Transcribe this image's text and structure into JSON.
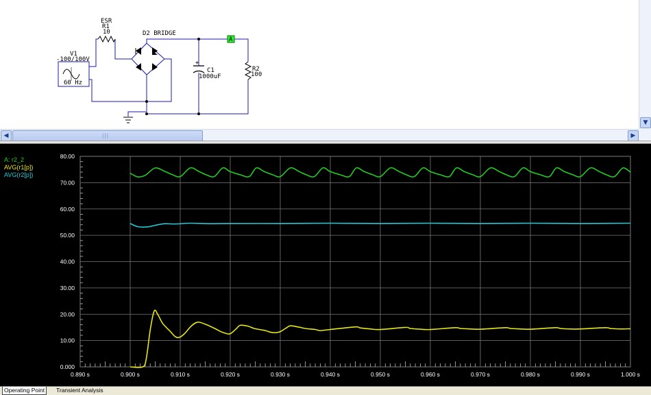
{
  "schematic": {
    "source": {
      "name": "V1",
      "value": "-100/100V",
      "freq": "60 Hz"
    },
    "esr": {
      "title": "ESR",
      "name": "R1",
      "value": "10"
    },
    "bridge": {
      "name": "D2 BRIDGE"
    },
    "capacitor": {
      "name": "C1",
      "value": "1000uF"
    },
    "load": {
      "name": "R2",
      "value": "100"
    },
    "probe": {
      "label": "A"
    }
  },
  "legend": [
    {
      "label": "A: r2_2",
      "color": "#22cc22"
    },
    {
      "label": "AVG(r1[p])",
      "color": "#e8e812"
    },
    {
      "label": "AVG(r2[p])",
      "color": "#22c8d8"
    }
  ],
  "tabs": [
    "Operating Point",
    "Transient Analysis"
  ],
  "chart_data": {
    "type": "line",
    "xlabel": "",
    "ylabel": "",
    "xlim": [
      0.89,
      1.0
    ],
    "ylim": [
      0,
      80
    ],
    "x_ticks": [
      "0.890 s",
      "0.900 s",
      "0.910 s",
      "0.920 s",
      "0.930 s",
      "0.940 s",
      "0.950 s",
      "0.960 s",
      "0.970 s",
      "0.980 s",
      "0.990 s",
      "1.000 s"
    ],
    "y_ticks": [
      "0.000",
      "10.00",
      "20.00",
      "30.00",
      "40.00",
      "50.00",
      "60.00",
      "70.00",
      "80.00"
    ],
    "grid": true,
    "legend_position": "top-left",
    "series": [
      {
        "name": "A: r2_2",
        "color": "#22cc22",
        "x": [
          0.9,
          0.9015,
          0.903,
          0.905,
          0.907,
          0.9085,
          0.91,
          0.912,
          0.9138,
          0.9152,
          0.9168,
          0.9185,
          0.92,
          0.922,
          0.9238,
          0.9252,
          0.9268,
          0.9285,
          0.93,
          0.932,
          0.9338,
          0.9352,
          0.9368,
          0.9385,
          0.94,
          0.942,
          0.9438,
          0.9452,
          0.9468,
          0.9485,
          0.95,
          0.952,
          0.9538,
          0.9552,
          0.9568,
          0.9585,
          0.96,
          0.962,
          0.9638,
          0.9652,
          0.9668,
          0.9685,
          0.97,
          0.972,
          0.9738,
          0.9752,
          0.9768,
          0.9785,
          0.98,
          0.982,
          0.9838,
          0.9852,
          0.9868,
          0.9885,
          0.99,
          0.992,
          0.9938,
          0.9952,
          0.9968,
          0.9985,
          1.0
        ],
        "y": [
          73.6,
          72.2,
          72.8,
          75.6,
          74.2,
          73.0,
          72.3,
          75.6,
          74.2,
          73.0,
          72.3,
          75.6,
          74.2,
          73.0,
          72.3,
          75.6,
          74.2,
          73.0,
          72.3,
          75.6,
          74.2,
          73.0,
          72.3,
          75.6,
          74.2,
          73.0,
          72.3,
          75.6,
          74.2,
          73.0,
          72.3,
          75.6,
          74.2,
          73.0,
          72.3,
          75.6,
          74.2,
          73.0,
          72.3,
          75.6,
          74.2,
          73.0,
          72.3,
          75.6,
          74.2,
          73.0,
          72.3,
          75.6,
          74.2,
          73.0,
          72.3,
          75.6,
          74.2,
          73.0,
          72.3,
          75.6,
          74.2,
          73.0,
          72.3,
          75.6,
          74.0
        ]
      },
      {
        "name": "AVG(r1[p])",
        "color": "#e8e812",
        "x": [
          0.9,
          0.9025,
          0.9032,
          0.904,
          0.9048,
          0.9055,
          0.9065,
          0.908,
          0.909,
          0.9098,
          0.9108,
          0.9122,
          0.9135,
          0.915,
          0.917,
          0.918,
          0.919,
          0.92,
          0.9212,
          0.922,
          0.9235,
          0.925,
          0.927,
          0.928,
          0.929,
          0.93,
          0.9312,
          0.932,
          0.9335,
          0.935,
          0.937,
          0.938,
          0.94,
          0.945,
          0.946,
          0.948,
          0.95,
          0.955,
          0.956,
          0.958,
          0.96,
          0.965,
          0.966,
          0.968,
          0.97,
          0.975,
          0.976,
          0.978,
          0.98,
          0.985,
          0.986,
          0.988,
          0.99,
          0.995,
          0.996,
          0.998,
          1.0
        ],
        "y": [
          0,
          0,
          3,
          14,
          21.2,
          20,
          16.5,
          13.5,
          11.5,
          11.2,
          12.5,
          15.5,
          17.0,
          16.2,
          14.5,
          13.5,
          12.8,
          12.6,
          14.5,
          15.8,
          15.5,
          14.5,
          13.8,
          13.2,
          13.0,
          13.4,
          14.8,
          15.6,
          15.2,
          14.6,
          14.2,
          13.8,
          14.2,
          15.2,
          14.8,
          14.4,
          14.2,
          15.0,
          14.6,
          14.3,
          14.2,
          14.9,
          14.6,
          14.4,
          14.3,
          14.9,
          14.6,
          14.4,
          14.3,
          14.9,
          14.6,
          14.4,
          14.4,
          14.9,
          14.6,
          14.4,
          14.5
        ]
      },
      {
        "name": "AVG(r2[p])",
        "color": "#22c8d8",
        "x": [
          0.9,
          0.9015,
          0.9035,
          0.9055,
          0.907,
          0.909,
          0.912,
          0.916,
          0.92,
          0.93,
          0.94,
          0.95,
          0.96,
          0.97,
          0.98,
          0.99,
          1.0
        ],
        "y": [
          54.5,
          53.3,
          53.2,
          54.0,
          54.4,
          54.3,
          54.6,
          54.4,
          54.5,
          54.5,
          54.6,
          54.5,
          54.6,
          54.5,
          54.6,
          54.5,
          54.6
        ]
      }
    ]
  }
}
